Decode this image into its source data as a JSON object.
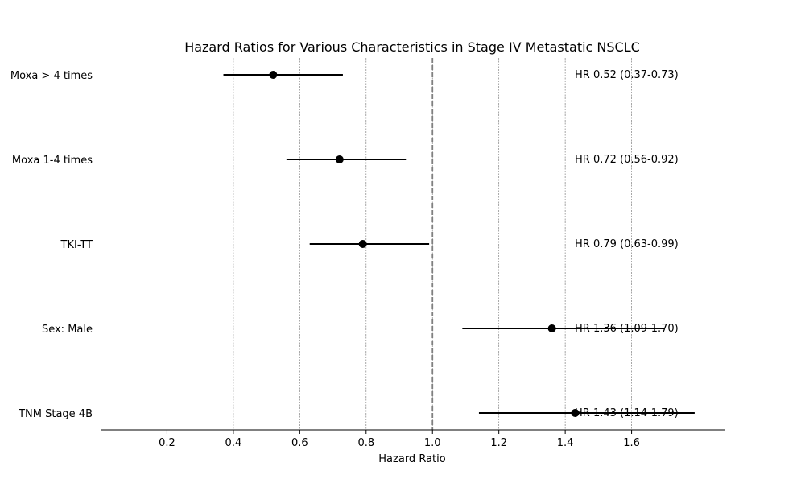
{
  "chart_data": {
    "type": "forest",
    "title": "Hazard Ratios for Various Characteristics in Stage IV Metastatic NSCLC",
    "xlabel": "Hazard Ratio",
    "xlim": [
      0.0,
      1.88
    ],
    "xticks": [
      0.2,
      0.4,
      0.6,
      0.8,
      1.0,
      1.2,
      1.4,
      1.6
    ],
    "xtick_labels": [
      "0.2",
      "0.4",
      "0.6",
      "0.8",
      "1.0",
      "1.2",
      "1.4",
      "1.6"
    ],
    "reference_line": 1.0,
    "grid": "vertical dotted",
    "rows": [
      {
        "label": "Moxa > 4 times",
        "hr": 0.52,
        "lo": 0.37,
        "hi": 0.73,
        "text": "HR 0.52 (0.37-0.73)"
      },
      {
        "label": "Moxa 1-4 times",
        "hr": 0.72,
        "lo": 0.56,
        "hi": 0.92,
        "text": "HR 0.72 (0.56-0.92)"
      },
      {
        "label": "TKI-TT",
        "hr": 0.79,
        "lo": 0.63,
        "hi": 0.99,
        "text": "HR 0.79 (0.63-0.99)"
      },
      {
        "label": "Sex: Male",
        "hr": 1.36,
        "lo": 1.09,
        "hi": 1.7,
        "text": "HR 1.36 (1.09-1.70)"
      },
      {
        "label": "TNM Stage 4B",
        "hr": 1.43,
        "lo": 1.14,
        "hi": 1.79,
        "text": "HR 1.43 (1.14-1.79)"
      }
    ],
    "colors": {
      "point": "#000000",
      "ci": "#000000",
      "reference": "#808080",
      "grid": "#808080"
    }
  }
}
